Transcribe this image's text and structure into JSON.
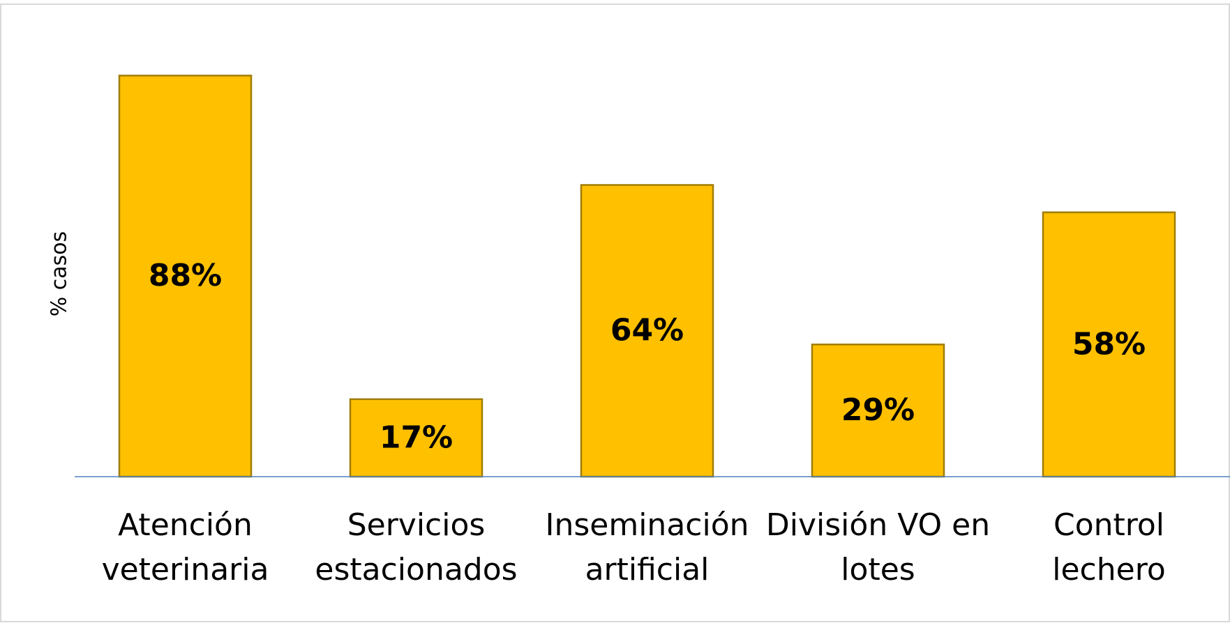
{
  "chart_data": {
    "type": "bar",
    "y_label": "% casos",
    "categories": [
      "Atención veterinaria",
      "Servicios estacionados",
      "Inseminación artificial",
      "División VO en lotes",
      "Control lechero"
    ],
    "values": [
      88,
      17,
      64,
      29,
      58
    ],
    "value_labels": [
      "88%",
      "17%",
      "64%",
      "29%",
      "58%"
    ],
    "color": "#ffc000",
    "ylim": [
      0,
      100
    ]
  }
}
